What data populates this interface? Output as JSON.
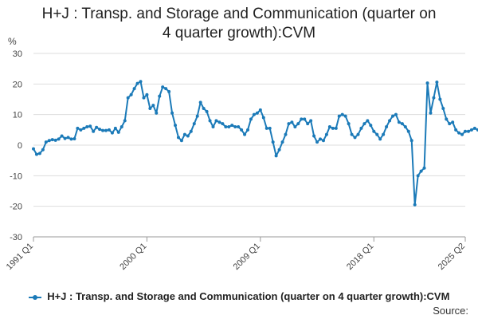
{
  "title_lines": [
    "H+J : Transp. and Storage and Communication (quarter on",
    "4 quarter growth):CVM"
  ],
  "legend_label": "H+J : Transp. and Storage and Communication (quarter on 4 quarter growth):CVM",
  "source_label": "Source:",
  "colors": {
    "series": "#1b7ab8",
    "grid": "#dddddd",
    "axis": "#999999"
  },
  "chart_data": {
    "type": "line",
    "title": "H+J : Transp. and Storage and Communication (quarter on 4 quarter growth):CVM",
    "ylabel": "%",
    "ylim": [
      -30,
      30
    ],
    "yticks": [
      30,
      20,
      10,
      0,
      -10,
      -20,
      -30
    ],
    "xlim": [
      "1991 Q1",
      "2025 Q2"
    ],
    "xticks": [
      "1991 Q1",
      "2000 Q1",
      "2009 Q1",
      "2018 Q1",
      "2025 Q2"
    ],
    "grid": true,
    "legend_position": "bottom",
    "series": [
      {
        "name": "H+J : Transp. and Storage and Communication (quarter on 4 quarter growth):CVM",
        "start": "1991 Q1",
        "frequency": "quarterly",
        "values": [
          -1.2,
          -3.0,
          -2.7,
          -1.5,
          1.0,
          1.5,
          1.8,
          1.6,
          2.0,
          3.0,
          2.2,
          2.5,
          2.0,
          2.1,
          5.5,
          5.0,
          5.5,
          6.0,
          6.2,
          4.5,
          5.8,
          5.2,
          4.8,
          4.8,
          5.0,
          4.0,
          5.5,
          4.2,
          6.0,
          8.0,
          15.5,
          16.5,
          18.5,
          20.2,
          20.8,
          15.5,
          16.5,
          12.0,
          13.0,
          10.5,
          16.0,
          19.0,
          18.5,
          17.5,
          10.5,
          6.5,
          2.5,
          1.5,
          3.5,
          3.0,
          4.5,
          7.0,
          9.5,
          14.0,
          12.0,
          11.0,
          8.0,
          6.0,
          8.0,
          7.5,
          7.0,
          6.0,
          6.0,
          6.5,
          6.0,
          6.0,
          5.0,
          3.5,
          5.0,
          8.5,
          10.0,
          10.5,
          11.5,
          9.0,
          5.5,
          5.5,
          1.0,
          -3.5,
          -1.5,
          1.0,
          3.5,
          7.0,
          7.5,
          6.0,
          7.0,
          8.5,
          8.5,
          7.0,
          8.0,
          3.0,
          1.0,
          2.0,
          1.5,
          3.5,
          6.0,
          5.5,
          5.5,
          9.5,
          10.0,
          9.5,
          7.0,
          3.5,
          2.5,
          3.5,
          5.5,
          7.0,
          8.0,
          6.5,
          4.5,
          3.5,
          2.0,
          3.5,
          6.0,
          8.0,
          9.5,
          10.0,
          7.5,
          7.0,
          6.0,
          4.5,
          1.5,
          -19.5,
          -10.0,
          -8.5,
          -7.5,
          20.3,
          10.5,
          15.5,
          20.6,
          15.0,
          12.0,
          8.5,
          7.0,
          7.5,
          5.0,
          4.0,
          3.5,
          4.5,
          4.5,
          5.0,
          5.5,
          5.0
        ]
      }
    ]
  }
}
